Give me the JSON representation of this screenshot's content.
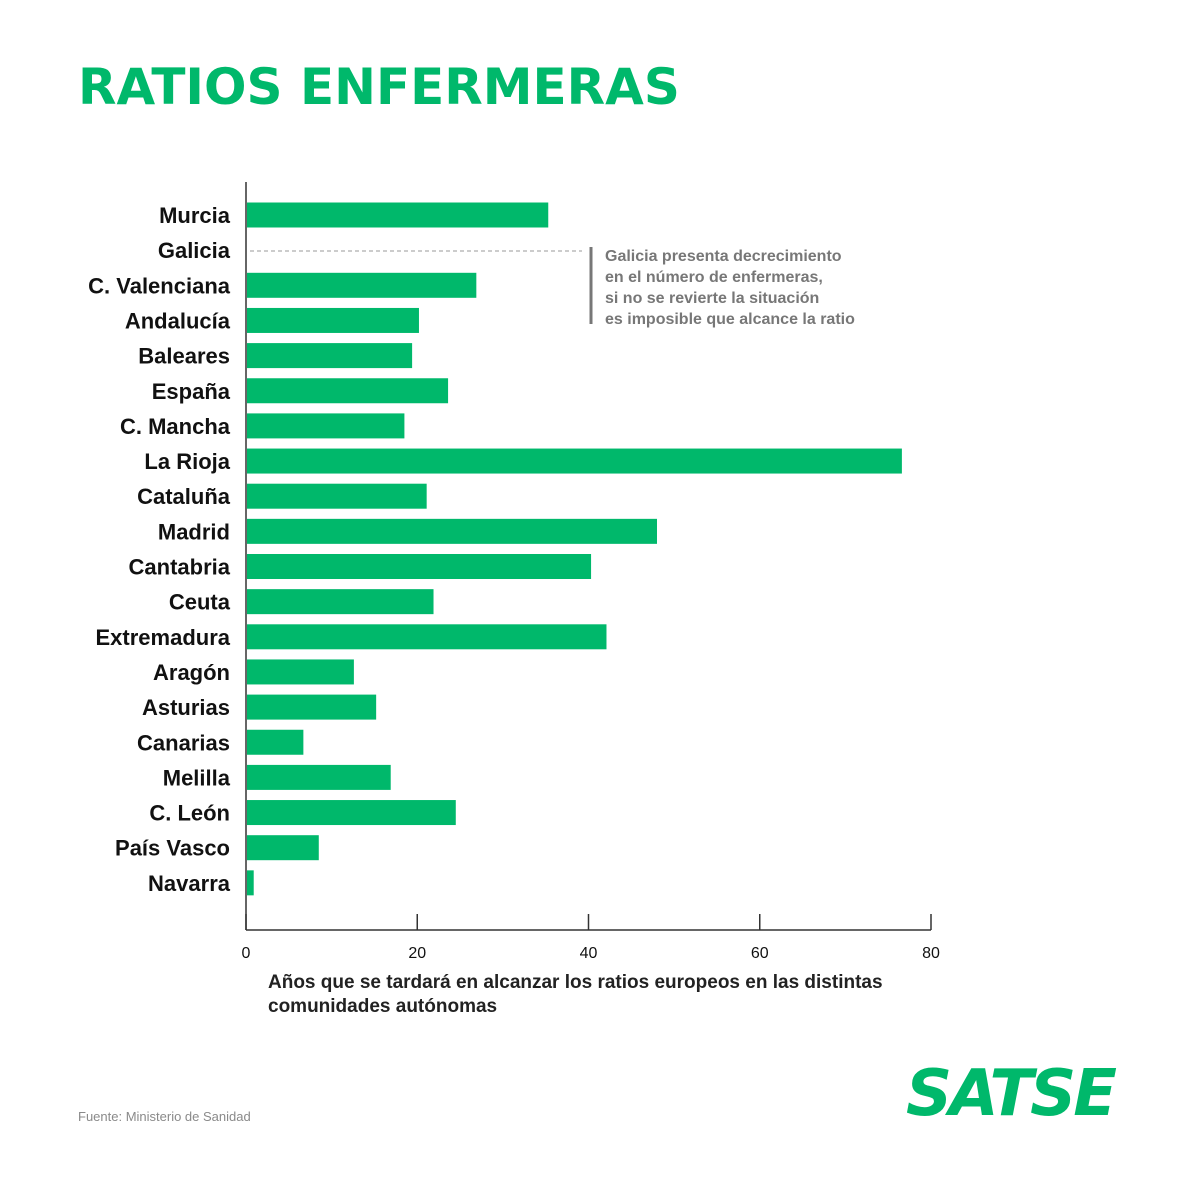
{
  "title": "RATIOS ENFERMERAS",
  "colors": {
    "accent": "#00b86b",
    "bar": "#00b86b",
    "note_text": "#777777",
    "axis": "#333333"
  },
  "annotation": {
    "lines": [
      "Galicia presenta decrecimiento",
      "en el número de enfermeras,",
      "si no se revierte la situación",
      "es imposible que alcance la ratio"
    ]
  },
  "source": "Fuente: Ministerio de Sanidad",
  "logo": "SATSE",
  "chart_data": {
    "type": "bar",
    "orientation": "horizontal",
    "title": "RATIOS ENFERMERAS",
    "xlabel": "Años que se tardará en alcanzar los ratios europeos en las distintas comunidades autónomas",
    "ylabel": "",
    "xlim": [
      0,
      80
    ],
    "xticks": [
      0,
      20,
      40,
      60,
      80
    ],
    "grid": false,
    "categories": [
      "Murcia",
      "Galicia",
      "C. Valenciana",
      "Andalucía",
      "Baleares",
      "España",
      "C. Mancha",
      "La Rioja",
      "Cataluña",
      "Madrid",
      "Cantabria",
      "Ceuta",
      "Extremadura",
      "Aragón",
      "Asturias",
      "Canarias",
      "Melilla",
      "C. León",
      "País Vasco",
      "Navarra"
    ],
    "values": [
      35.3,
      null,
      26.9,
      20.2,
      19.4,
      23.6,
      18.5,
      76.6,
      21.1,
      48.0,
      40.3,
      21.9,
      42.1,
      12.6,
      15.2,
      6.7,
      16.9,
      24.5,
      8.5,
      0.9
    ]
  }
}
